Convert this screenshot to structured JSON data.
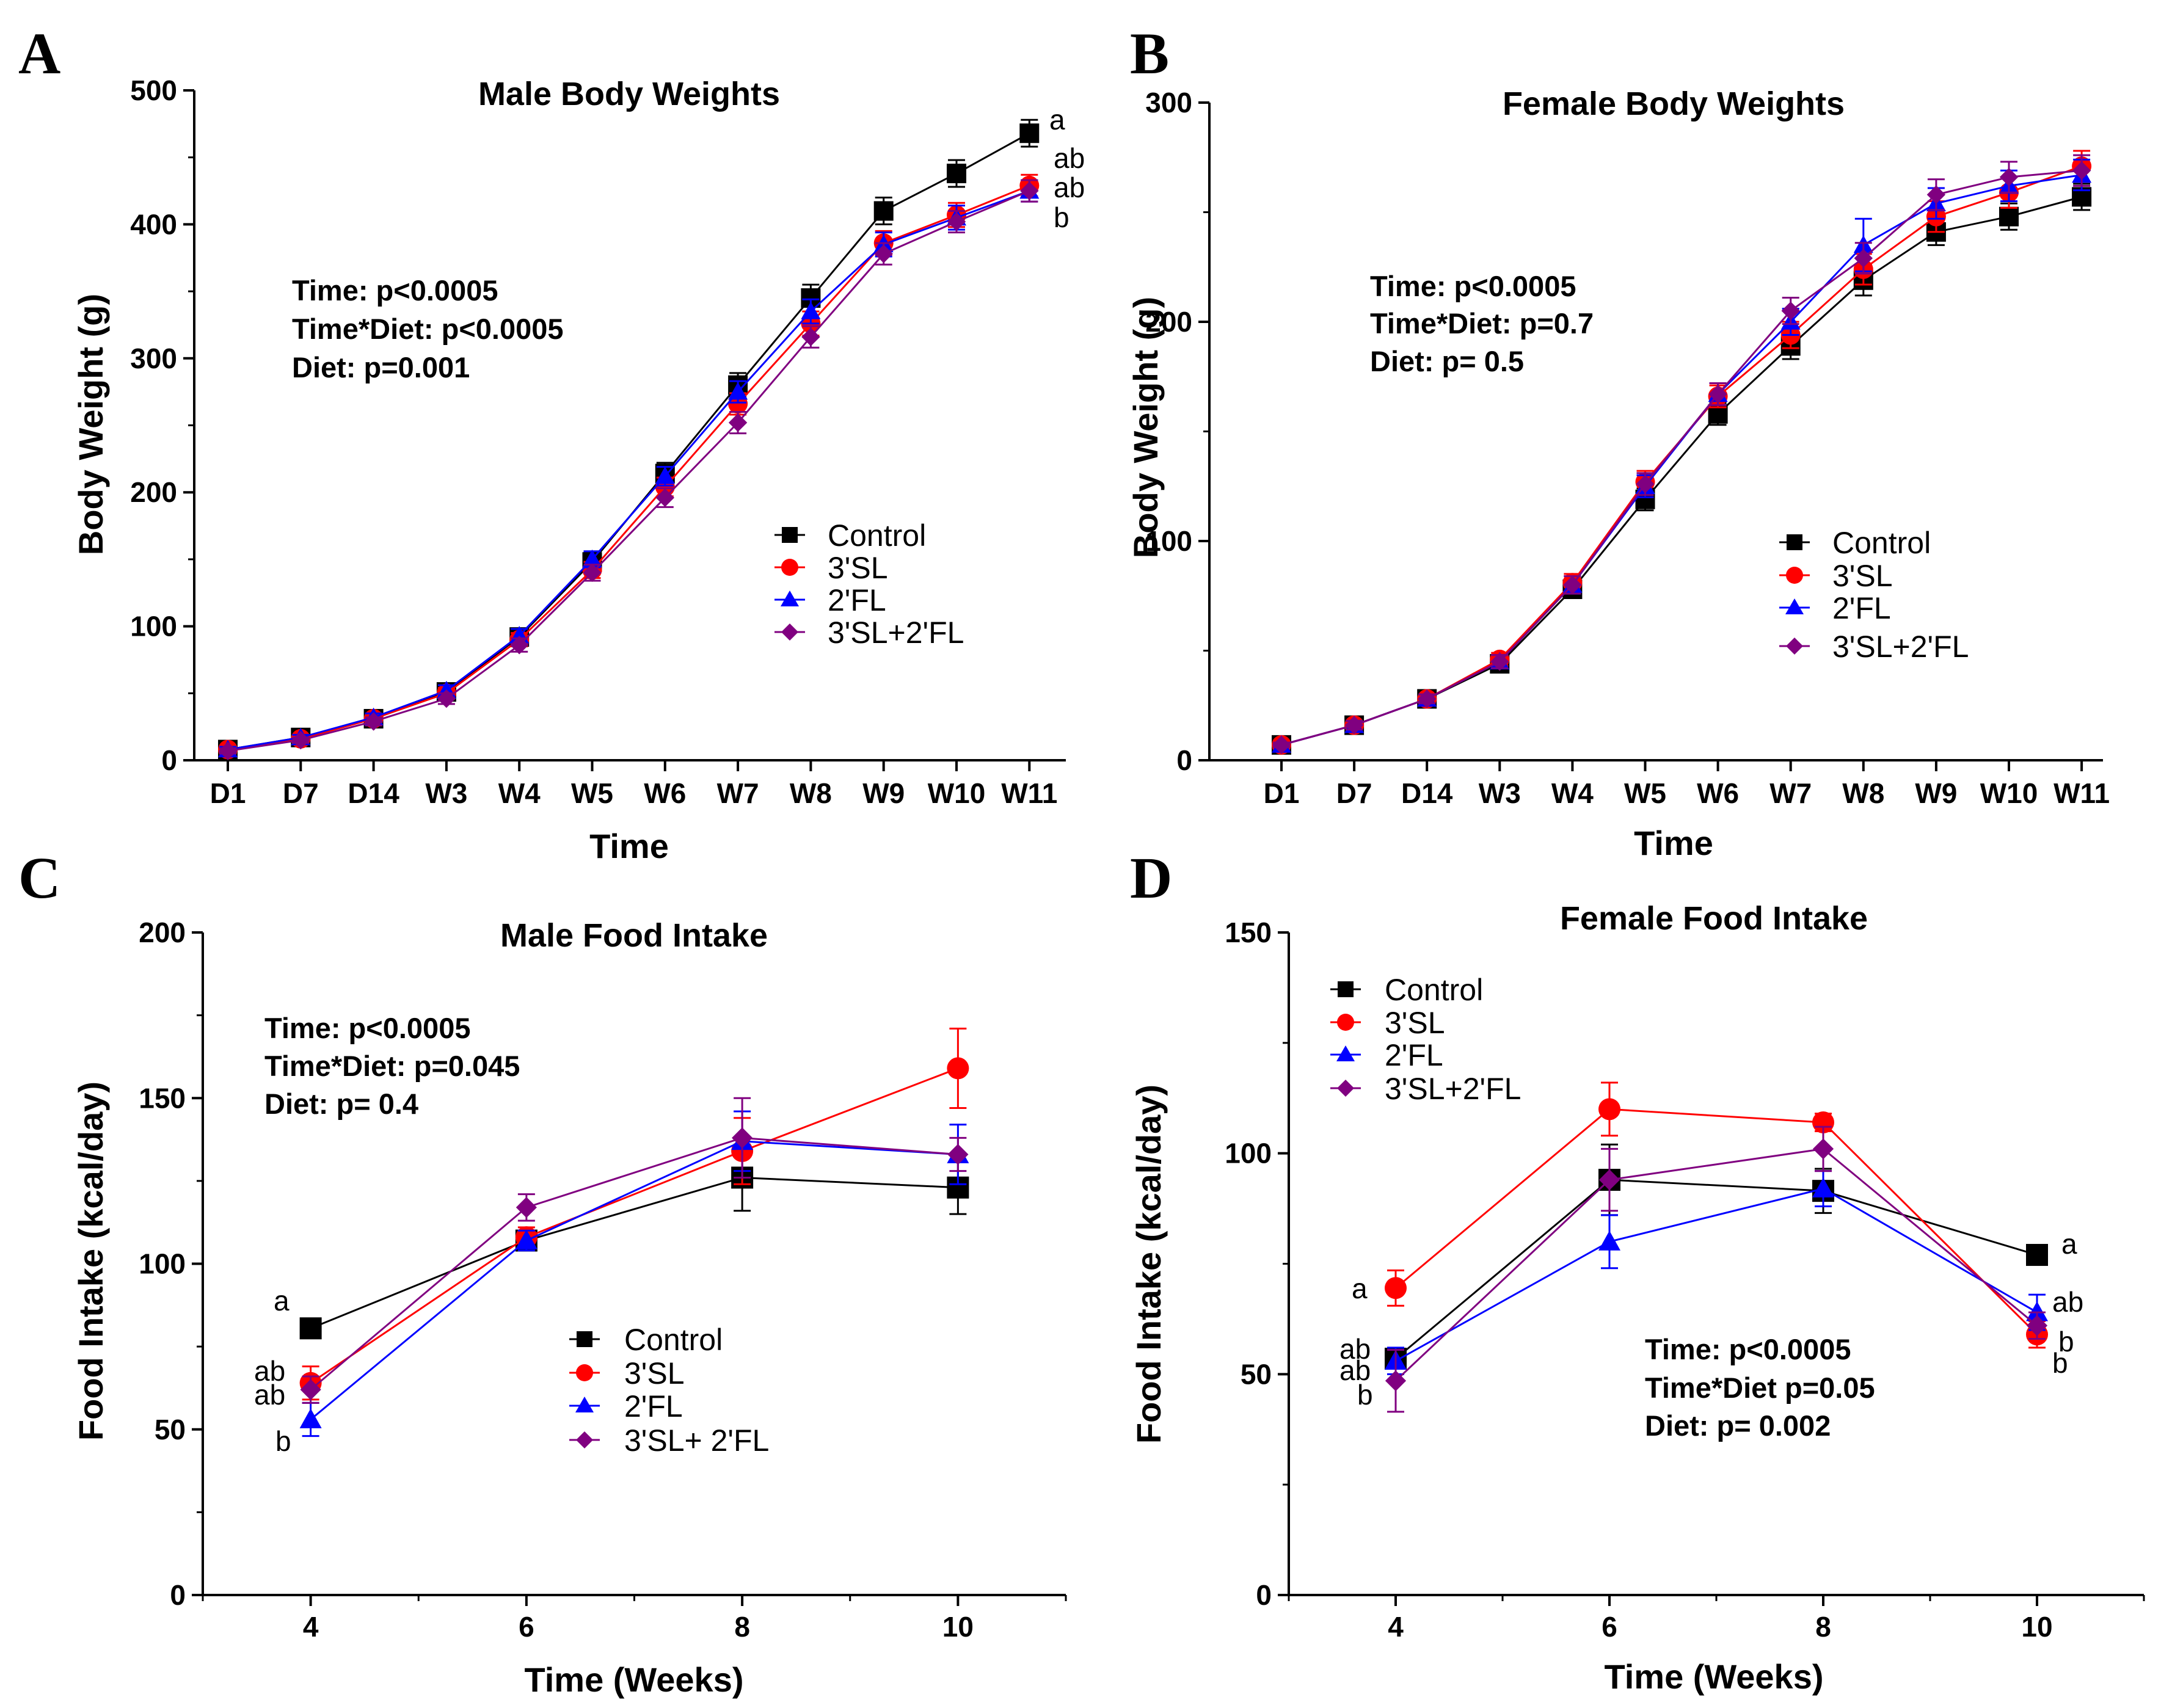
{
  "figure": {
    "panels": [
      "A",
      "B",
      "C",
      "D"
    ]
  },
  "chart_data": [
    {
      "panel": "A",
      "type": "line",
      "title": "Male Body Weights",
      "xlabel": "Time",
      "ylabel": "Body Weight (g)",
      "categories": [
        "D1",
        "D7",
        "D14",
        "W3",
        "W4",
        "W5",
        "W6",
        "W7",
        "W8",
        "W9",
        "W10",
        "W11"
      ],
      "ylim": [
        0,
        500
      ],
      "yticks": [
        0,
        100,
        200,
        300,
        400,
        500
      ],
      "stats": [
        "Time: p<0.0005",
        "Time*Diet: p<0.0005",
        "Diet: p=0.001"
      ],
      "legend": [
        "Control",
        "3'SL",
        "2'FL",
        "3'SL+2'FL"
      ],
      "series": [
        {
          "name": "Control",
          "values": [
            8,
            17,
            31,
            51,
            92,
            148,
            214,
            280,
            345,
            410,
            438,
            468
          ],
          "errors": [
            2,
            2,
            3,
            4,
            5,
            7,
            8,
            9,
            10,
            10,
            10,
            10
          ]
        },
        {
          "name": "3'SL",
          "values": [
            8,
            16,
            31,
            50,
            90,
            142,
            204,
            266,
            326,
            386,
            407,
            429
          ],
          "errors": [
            2,
            2,
            3,
            4,
            5,
            6,
            7,
            8,
            9,
            9,
            9,
            8
          ]
        },
        {
          "name": "2'FL",
          "values": [
            8,
            17,
            32,
            52,
            93,
            150,
            212,
            275,
            335,
            385,
            405,
            425
          ],
          "errors": [
            2,
            2,
            3,
            4,
            5,
            6,
            7,
            8,
            9,
            9,
            9,
            8
          ]
        },
        {
          "name": "3'SL+2'FL",
          "values": [
            7,
            15,
            29,
            46,
            86,
            140,
            196,
            252,
            316,
            378,
            402,
            425
          ],
          "errors": [
            2,
            2,
            3,
            4,
            5,
            6,
            7,
            8,
            8,
            8,
            8,
            8
          ]
        }
      ],
      "significance": [
        "a",
        "ab",
        "ab",
        "b"
      ]
    },
    {
      "panel": "B",
      "type": "line",
      "title": "Female Body Weights",
      "xlabel": "Time",
      "ylabel": "Body Weight (g)",
      "categories": [
        "D1",
        "D7",
        "D14",
        "W3",
        "W4",
        "W5",
        "W6",
        "W7",
        "W8",
        "W9",
        "W10",
        "W11"
      ],
      "ylim": [
        0,
        300
      ],
      "yticks": [
        0,
        100,
        200,
        300
      ],
      "stats": [
        "Time: p<0.0005",
        "Time*Diet: p=0.7",
        "Diet: p= 0.5"
      ],
      "legend": [
        "Control",
        "3'SL",
        "2'FL",
        "3'SL+2'FL"
      ],
      "series": [
        {
          "name": "Control",
          "values": [
            7,
            16,
            28,
            44,
            78,
            119,
            158,
            189,
            219,
            241,
            248,
            257
          ],
          "errors": [
            1,
            2,
            2,
            3,
            4,
            5,
            5,
            6,
            7,
            6,
            6,
            6
          ]
        },
        {
          "name": "3'SL",
          "values": [
            7,
            16,
            28,
            46,
            81,
            127,
            166,
            194,
            224,
            248,
            259,
            271
          ],
          "errors": [
            1,
            2,
            2,
            3,
            4,
            5,
            5,
            6,
            7,
            7,
            7,
            7
          ]
        },
        {
          "name": "2'FL",
          "values": [
            7,
            16,
            28,
            45,
            80,
            125,
            167,
            200,
            235,
            254,
            262,
            267
          ],
          "errors": [
            1,
            2,
            2,
            3,
            4,
            5,
            5,
            6,
            12,
            7,
            7,
            7
          ]
        },
        {
          "name": "3'SL+2'FL",
          "values": [
            7,
            16,
            28,
            45,
            80,
            126,
            167,
            205,
            229,
            258,
            266,
            269
          ],
          "errors": [
            1,
            2,
            2,
            3,
            4,
            5,
            5,
            6,
            7,
            7,
            7,
            7
          ]
        }
      ]
    },
    {
      "panel": "C",
      "type": "line",
      "title": "Male Food Intake",
      "xlabel": "Time (Weeks)",
      "ylabel": "Food Intake (kcal/day)",
      "x": [
        4,
        6,
        8,
        10
      ],
      "xlim": [
        3,
        11
      ],
      "ylim": [
        0,
        200
      ],
      "yticks": [
        0,
        50,
        100,
        150,
        200
      ],
      "stats": [
        "Time: p<0.0005",
        "Time*Diet: p=0.045",
        "Diet: p= 0.4"
      ],
      "legend": [
        "Control",
        "3'SL",
        "2'FL",
        "3'SL+ 2'FL"
      ],
      "series": [
        {
          "name": "Control",
          "values": [
            80.5,
            107,
            126,
            123
          ],
          "errors": [
            2,
            3,
            10,
            8
          ]
        },
        {
          "name": "3'SL",
          "values": [
            64,
            108,
            134,
            159
          ],
          "errors": [
            5,
            3,
            10,
            12
          ]
        },
        {
          "name": "2'FL",
          "values": [
            53,
            107,
            137,
            133
          ],
          "errors": [
            5,
            3,
            9,
            9
          ]
        },
        {
          "name": "3'SL+2'FL",
          "values": [
            62,
            117,
            138,
            133
          ],
          "errors": [
            4,
            4,
            12,
            5
          ]
        }
      ],
      "significance": [
        "a",
        "ab",
        "ab",
        "b"
      ]
    },
    {
      "panel": "D",
      "type": "line",
      "title": "Female Food Intake",
      "xlabel": "Time (Weeks)",
      "ylabel": "Food Intake (kcal/day)",
      "x": [
        4,
        6,
        8,
        10
      ],
      "xlim": [
        3,
        11
      ],
      "ylim": [
        0,
        150
      ],
      "yticks": [
        0,
        50,
        100,
        150
      ],
      "stats": [
        "Time: p<0.0005",
        "Time*Diet p=0.05",
        "Diet: p= 0.002"
      ],
      "legend": [
        "Control",
        "3'SL",
        "2'FL",
        "3'SL+2'FL"
      ],
      "series": [
        {
          "name": "Control",
          "values": [
            53.5,
            94,
            91.5,
            77
          ],
          "errors": [
            2,
            8,
            5,
            2
          ]
        },
        {
          "name": "3'SL",
          "values": [
            69.5,
            110,
            107,
            59
          ],
          "errors": [
            4,
            6,
            2,
            3
          ]
        },
        {
          "name": "2'FL",
          "values": [
            53,
            80,
            92,
            64
          ],
          "errors": [
            3,
            6,
            4,
            4
          ]
        },
        {
          "name": "3'SL+2'FL",
          "values": [
            48.5,
            94,
            101,
            61
          ],
          "errors": [
            7,
            7,
            5,
            3
          ]
        }
      ],
      "significance_start": [
        "a",
        "ab",
        "ab",
        "b"
      ],
      "significance_end": [
        "a",
        "ab",
        "b",
        "b"
      ]
    }
  ],
  "styles": {
    "Control": {
      "color": "#000000",
      "marker": "square"
    },
    "3'SL": {
      "color": "#ff0000",
      "marker": "circle"
    },
    "2'FL": {
      "color": "#0000ff",
      "marker": "triangle"
    },
    "3'SL+2'FL": {
      "color": "#800080",
      "marker": "diamond"
    }
  }
}
